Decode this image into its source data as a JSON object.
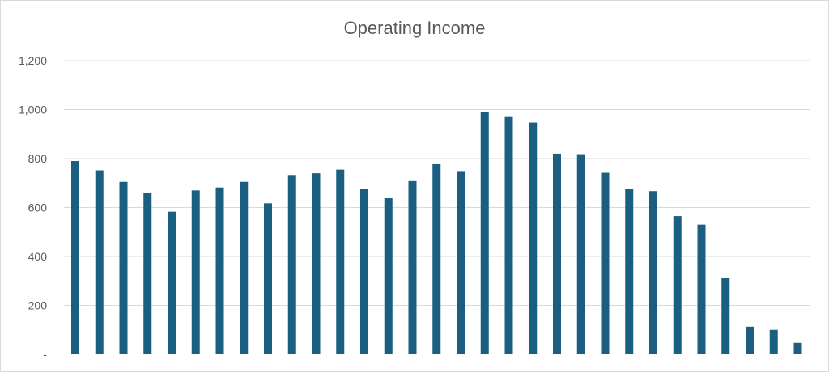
{
  "chart_data": {
    "type": "bar",
    "title": "Operating Income",
    "xlabel": "",
    "ylabel": "",
    "ylim": [
      0,
      1200
    ],
    "grid": true,
    "legend": "none",
    "bar_color": "#1a5f82",
    "grid_color": "#d9d9d9",
    "y_ticks": [
      {
        "value": 0,
        "label": "-"
      },
      {
        "value": 200,
        "label": "200"
      },
      {
        "value": 400,
        "label": "400"
      },
      {
        "value": 600,
        "label": "600"
      },
      {
        "value": 800,
        "label": "800"
      },
      {
        "value": 1000,
        "label": "1,000"
      },
      {
        "value": 1200,
        "label": "1,200"
      }
    ],
    "values": [
      790,
      752,
      705,
      660,
      583,
      670,
      682,
      705,
      617,
      733,
      740,
      755,
      676,
      638,
      708,
      777,
      749,
      990,
      973,
      947,
      820,
      818,
      742,
      676,
      667,
      565,
      530,
      314,
      113,
      100,
      47
    ]
  }
}
